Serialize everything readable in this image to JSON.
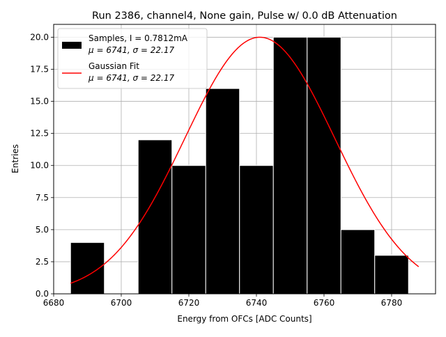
{
  "chart_data": {
    "type": "bar",
    "title": "Run 2386, channel4, None gain, Pulse w/ 0.0 dB Attenuation",
    "xlabel": "Energy from OFCs [ADC Counts]",
    "ylabel": "Entries",
    "xlim": [
      6680,
      6793
    ],
    "ylim": [
      0,
      21
    ],
    "xticks": [
      6680,
      6700,
      6720,
      6740,
      6760,
      6780
    ],
    "yticks": [
      0.0,
      2.5,
      5.0,
      7.5,
      10.0,
      12.5,
      15.0,
      17.5,
      20.0
    ],
    "grid": true,
    "legend_position": "top-left",
    "bins": [
      {
        "x0": 6685,
        "x1": 6695,
        "count": 4
      },
      {
        "x0": 6695,
        "x1": 6705,
        "count": 0
      },
      {
        "x0": 6705,
        "x1": 6715,
        "count": 12
      },
      {
        "x0": 6715,
        "x1": 6725,
        "count": 10
      },
      {
        "x0": 6725,
        "x1": 6735,
        "count": 16
      },
      {
        "x0": 6735,
        "x1": 6745,
        "count": 10
      },
      {
        "x0": 6745,
        "x1": 6755,
        "count": 20
      },
      {
        "x0": 6755,
        "x1": 6765,
        "count": 20
      },
      {
        "x0": 6765,
        "x1": 6775,
        "count": 5
      },
      {
        "x0": 6775,
        "x1": 6785,
        "count": 3
      }
    ],
    "fit": {
      "mu": 6741,
      "sigma": 22.17,
      "amplitude": 20,
      "x_range": [
        6685,
        6788
      ]
    },
    "series": [
      {
        "name": "Samples, I = 0.7812mA",
        "stats": "μ = 6741, σ = 22.17",
        "color": "#000000",
        "kind": "histogram"
      },
      {
        "name": "Gaussian Fit",
        "stats": "μ = 6741, σ = 22.17",
        "color": "#ff0000",
        "kind": "line"
      }
    ]
  }
}
